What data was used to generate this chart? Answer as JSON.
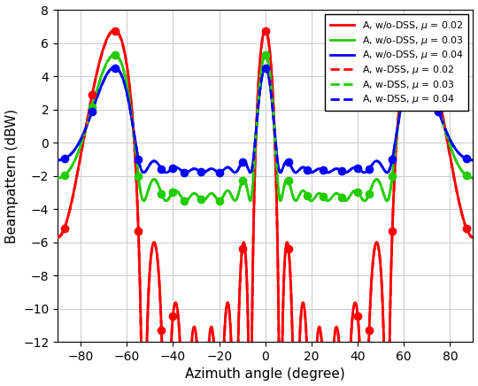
{
  "xlabel": "Azimuth angle (degree)",
  "ylabel": "Beampattern (dBW)",
  "xlim": [
    -90,
    90
  ],
  "ylim": [
    -12,
    8
  ],
  "xticks": [
    -80,
    -60,
    -40,
    -20,
    0,
    20,
    40,
    60,
    80
  ],
  "yticks": [
    -12,
    -10,
    -8,
    -6,
    -4,
    -2,
    0,
    2,
    4,
    6,
    8
  ],
  "legend_entries": [
    "A, w/o-DSS, $\\mu$ = 0.02",
    "A, w/o-DSS, $\\mu$ = 0.03",
    "A, w/o-DSS, $\\mu$ = 0.04",
    "A, w-DSS, $\\mu$ = 0.02",
    "A, w-DSS, $\\mu$ = 0.03",
    "A, w-DSS, $\\mu$ = 0.04"
  ],
  "colors_solid": [
    "#ff0000",
    "#22cc00",
    "#0000ff"
  ],
  "colors_dash": [
    "#ff0000",
    "#22cc00",
    "#0000ff"
  ],
  "background_color": "#ffffff",
  "grid_color": "#cccccc",
  "peak_red": 6.8,
  "peak_green": 4.7,
  "peak_blue": 3.4,
  "N": 8,
  "d": 1.1,
  "lw": 2.0,
  "marker_size": 6
}
